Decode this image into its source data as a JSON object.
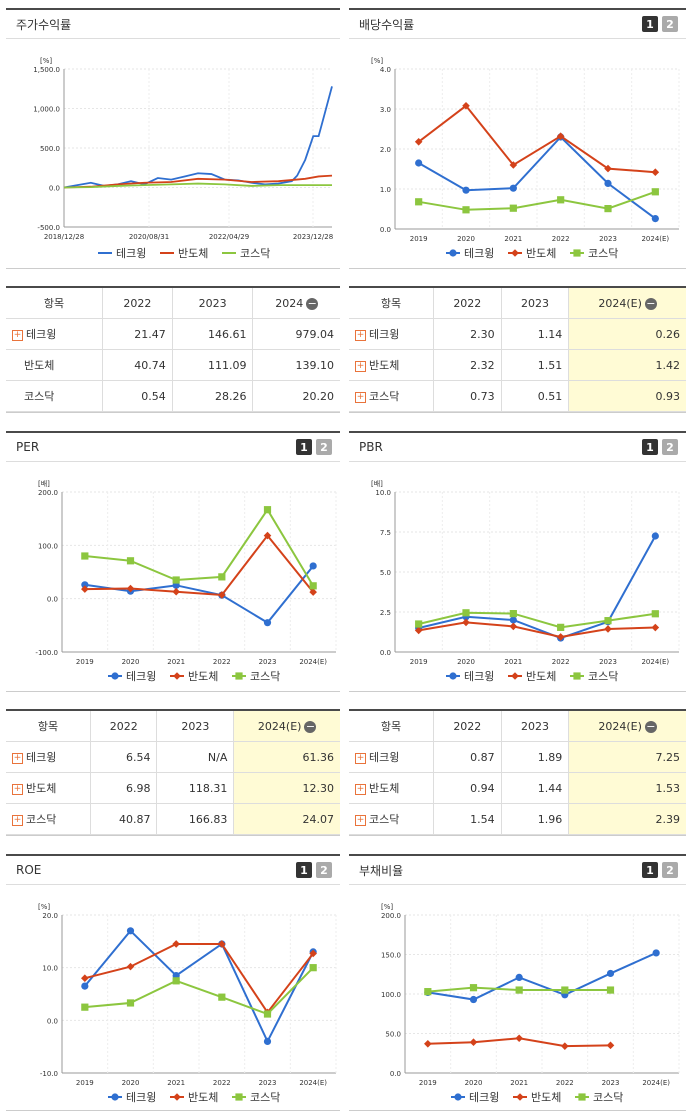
{
  "colors": {
    "tech": "#2f6fd0",
    "semi": "#d4421a",
    "kosdaq": "#8cc63f"
  },
  "legend": [
    "테크윙",
    "반도체",
    "코스닥"
  ],
  "charts": {
    "stock": {
      "title": "주가수익률",
      "unit": "[%]",
      "yticks": [
        "1,500.0",
        "1,000.0",
        "500.0",
        "0.0",
        "-500.0"
      ],
      "xticks": [
        "2018/12/28",
        "2020/08/31",
        "2022/04/29",
        "2023/12/28"
      ]
    },
    "div": {
      "title": "배당수익률",
      "unit": "[%]",
      "yticks": [
        "4.0",
        "3.0",
        "2.0",
        "1.0",
        "0.0"
      ],
      "xticks": [
        "2019",
        "2020",
        "2021",
        "2022",
        "2023",
        "2024(E)"
      ]
    },
    "per": {
      "title": "PER",
      "unit": "[배]",
      "yticks": [
        "200.0",
        "100.0",
        "0.0",
        "-100.0"
      ],
      "xticks": [
        "2019",
        "2020",
        "2021",
        "2022",
        "2023",
        "2024(E)"
      ]
    },
    "pbr": {
      "title": "PBR",
      "unit": "[배]",
      "yticks": [
        "10.0",
        "7.5",
        "5.0",
        "2.5",
        "0.0"
      ],
      "xticks": [
        "2019",
        "2020",
        "2021",
        "2022",
        "2023",
        "2024(E)"
      ]
    },
    "roe": {
      "title": "ROE",
      "unit": "[%]",
      "yticks": [
        "20.0",
        "10.0",
        "0.0",
        "-10.0"
      ],
      "xticks": [
        "2019",
        "2020",
        "2021",
        "2022",
        "2023",
        "2024(E)"
      ]
    },
    "debt": {
      "title": "부채비율",
      "unit": "[%]",
      "yticks": [
        "200.0",
        "150.0",
        "100.0",
        "50.0",
        "0.0"
      ],
      "xticks": [
        "2019",
        "2020",
        "2021",
        "2022",
        "2023",
        "2024(E)"
      ]
    }
  },
  "badges": [
    "1",
    "2"
  ],
  "tables": {
    "stock": {
      "head": [
        "항목",
        "2022",
        "2023",
        "2024"
      ],
      "rows": [
        [
          "테크윙",
          "21.47",
          "146.61",
          "979.04"
        ],
        [
          "반도체",
          "40.74",
          "111.09",
          "139.10"
        ],
        [
          "코스닥",
          "0.54",
          "28.26",
          "20.20"
        ]
      ]
    },
    "div": {
      "head": [
        "항목",
        "2022",
        "2023",
        "2024(E)"
      ],
      "rows": [
        [
          "테크윙",
          "2.30",
          "1.14",
          "0.26"
        ],
        [
          "반도체",
          "2.32",
          "1.51",
          "1.42"
        ],
        [
          "코스닥",
          "0.73",
          "0.51",
          "0.93"
        ]
      ]
    },
    "per": {
      "head": [
        "항목",
        "2022",
        "2023",
        "2024(E)"
      ],
      "rows": [
        [
          "테크윙",
          "6.54",
          "N/A",
          "61.36"
        ],
        [
          "반도체",
          "6.98",
          "118.31",
          "12.30"
        ],
        [
          "코스닥",
          "40.87",
          "166.83",
          "24.07"
        ]
      ]
    },
    "pbr": {
      "head": [
        "항목",
        "2022",
        "2023",
        "2024(E)"
      ],
      "rows": [
        [
          "테크윙",
          "0.87",
          "1.89",
          "7.25"
        ],
        [
          "반도체",
          "0.94",
          "1.44",
          "1.53"
        ],
        [
          "코스닥",
          "1.54",
          "1.96",
          "2.39"
        ]
      ]
    }
  },
  "chart_data": [
    {
      "type": "line",
      "title": "주가수익률",
      "ylabel": "[%]",
      "ylim": [
        -500,
        1500
      ],
      "series": [
        {
          "name": "테크윙",
          "x": [
            0,
            0.05,
            0.1,
            0.15,
            0.2,
            0.25,
            0.3,
            0.35,
            0.4,
            0.45,
            0.5,
            0.55,
            0.6,
            0.65,
            0.7,
            0.75,
            0.8,
            0.85,
            0.87,
            0.9,
            0.93,
            0.95,
            0.97,
            1.0
          ],
          "values": [
            0,
            30,
            60,
            20,
            40,
            80,
            40,
            120,
            100,
            140,
            180,
            170,
            100,
            90,
            60,
            40,
            50,
            80,
            150,
            350,
            650,
            650,
            900,
            1280
          ]
        },
        {
          "name": "반도체",
          "x": [
            0,
            0.1,
            0.2,
            0.3,
            0.4,
            0.5,
            0.6,
            0.7,
            0.8,
            0.9,
            0.95,
            1.0
          ],
          "values": [
            0,
            10,
            40,
            60,
            70,
            110,
            100,
            70,
            80,
            110,
            140,
            150
          ]
        },
        {
          "name": "코스닥",
          "x": [
            0,
            0.1,
            0.2,
            0.3,
            0.4,
            0.5,
            0.6,
            0.7,
            0.8,
            0.9,
            1.0
          ],
          "values": [
            0,
            5,
            20,
            30,
            40,
            50,
            40,
            20,
            30,
            30,
            30
          ]
        }
      ]
    },
    {
      "type": "line",
      "title": "배당수익률",
      "ylabel": "[%]",
      "ylim": [
        0,
        4
      ],
      "categories": [
        "2019",
        "2020",
        "2021",
        "2022",
        "2023",
        "2024(E)"
      ],
      "series": [
        {
          "name": "테크윙",
          "values": [
            1.65,
            0.97,
            1.02,
            2.3,
            1.14,
            0.26
          ]
        },
        {
          "name": "반도체",
          "values": [
            2.18,
            3.08,
            1.6,
            2.32,
            1.51,
            1.42
          ]
        },
        {
          "name": "코스닥",
          "values": [
            0.68,
            0.48,
            0.52,
            0.73,
            0.51,
            0.93
          ]
        }
      ]
    },
    {
      "type": "line",
      "title": "PER",
      "ylabel": "[배]",
      "ylim": [
        -100,
        200
      ],
      "categories": [
        "2019",
        "2020",
        "2021",
        "2022",
        "2023",
        "2024(E)"
      ],
      "series": [
        {
          "name": "테크윙",
          "values": [
            26,
            14,
            25,
            6.54,
            -45,
            61.36
          ]
        },
        {
          "name": "반도체",
          "values": [
            18,
            19,
            13,
            6.98,
            118.31,
            12.3
          ]
        },
        {
          "name": "코스닥",
          "values": [
            80,
            71,
            35,
            40.87,
            166.83,
            24.07
          ]
        }
      ]
    },
    {
      "type": "line",
      "title": "PBR",
      "ylabel": "[배]",
      "ylim": [
        0,
        10
      ],
      "categories": [
        "2019",
        "2020",
        "2021",
        "2022",
        "2023",
        "2024(E)"
      ],
      "series": [
        {
          "name": "테크윙",
          "values": [
            1.5,
            2.2,
            2.0,
            0.87,
            1.89,
            7.25
          ]
        },
        {
          "name": "반도체",
          "values": [
            1.35,
            1.85,
            1.6,
            0.94,
            1.44,
            1.53
          ]
        },
        {
          "name": "코스닥",
          "values": [
            1.75,
            2.45,
            2.4,
            1.54,
            1.96,
            2.39
          ]
        }
      ]
    },
    {
      "type": "line",
      "title": "ROE",
      "ylabel": "[%]",
      "ylim": [
        -10,
        20
      ],
      "categories": [
        "2019",
        "2020",
        "2021",
        "2022",
        "2023",
        "2024(E)"
      ],
      "series": [
        {
          "name": "테크윙",
          "values": [
            6.5,
            17,
            8.5,
            14.5,
            -4,
            13
          ]
        },
        {
          "name": "반도체",
          "values": [
            8,
            10.2,
            14.5,
            14.5,
            1.5,
            12.7
          ]
        },
        {
          "name": "코스닥",
          "values": [
            2.5,
            3.3,
            7.5,
            4.4,
            1.2,
            10
          ]
        }
      ]
    },
    {
      "type": "line",
      "title": "부채비율",
      "ylabel": "[%]",
      "ylim": [
        0,
        200
      ],
      "categories": [
        "2019",
        "2020",
        "2021",
        "2022",
        "2023",
        "2024(E)"
      ],
      "series": [
        {
          "name": "테크윙",
          "values": [
            102,
            93,
            121,
            99,
            126,
            152
          ]
        },
        {
          "name": "반도체",
          "values": [
            37,
            39,
            44,
            34,
            35,
            null
          ]
        },
        {
          "name": "코스닥",
          "values": [
            103,
            108,
            105,
            105,
            105,
            null
          ]
        }
      ]
    }
  ]
}
